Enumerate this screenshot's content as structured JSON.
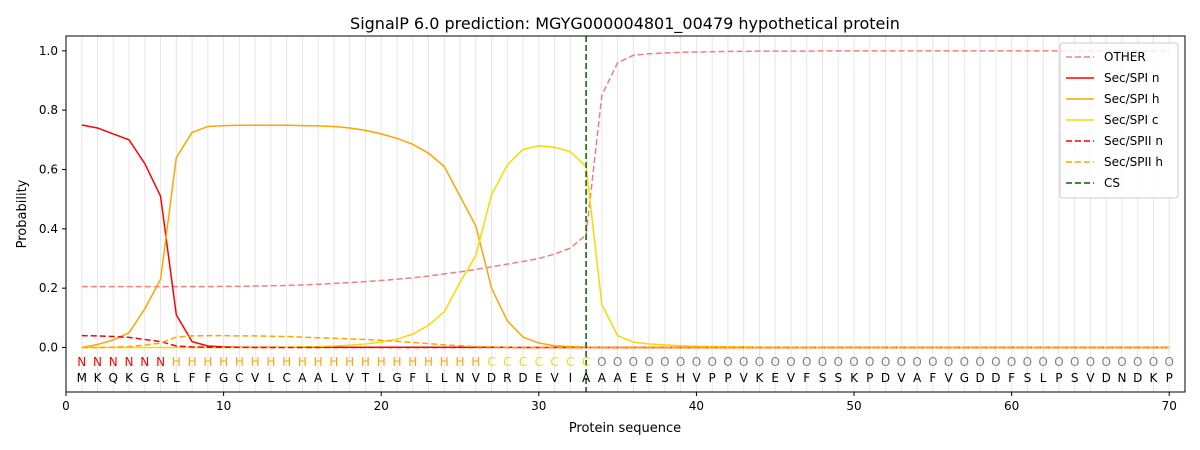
{
  "chart_data": {
    "type": "line",
    "title": "SignalP 6.0 prediction: MGYG000004801_00479 hypothetical protein",
    "xlabel": "Protein sequence",
    "ylabel": "Probability",
    "xlim": [
      0,
      71
    ],
    "ylim": [
      -0.15,
      1.05
    ],
    "x_ticks": [
      0,
      10,
      20,
      30,
      40,
      50,
      60,
      70
    ],
    "y_ticks": [
      0.0,
      0.2,
      0.4,
      0.6,
      0.8,
      1.0
    ],
    "x_tick_labels": [
      "0",
      "10",
      "20",
      "30",
      "40",
      "50",
      "60",
      "70"
    ],
    "y_tick_labels": [
      "0.0",
      "0.2",
      "0.4",
      "0.6",
      "0.8",
      "1.0"
    ],
    "grid": "vertical lines at each residue",
    "legend_position": "top-right",
    "sequence": [
      "M",
      "K",
      "Q",
      "K",
      "G",
      "R",
      "L",
      "F",
      "F",
      "G",
      "C",
      "V",
      "L",
      "C",
      "A",
      "A",
      "L",
      "V",
      "T",
      "L",
      "G",
      "F",
      "L",
      "L",
      "N",
      "V",
      "D",
      "R",
      "D",
      "E",
      "V",
      "I",
      "A",
      "A",
      "A",
      "E",
      "E",
      "S",
      "H",
      "V",
      "P",
      "P",
      "V",
      "K",
      "E",
      "V",
      "F",
      "S",
      "S",
      "K",
      "P",
      "D",
      "V",
      "A",
      "F",
      "V",
      "G",
      "D",
      "D",
      "F",
      "S",
      "L",
      "P",
      "S",
      "V",
      "D",
      "N",
      "D",
      "K",
      "P"
    ],
    "labels": [
      "N",
      "N",
      "N",
      "N",
      "N",
      "N",
      "H",
      "H",
      "H",
      "H",
      "H",
      "H",
      "H",
      "H",
      "H",
      "H",
      "H",
      "H",
      "H",
      "H",
      "H",
      "H",
      "H",
      "H",
      "H",
      "H",
      "C",
      "C",
      "C",
      "C",
      "C",
      "C",
      "C",
      "O",
      "O",
      "O",
      "O",
      "O",
      "O",
      "O",
      "O",
      "O",
      "O",
      "O",
      "O",
      "O",
      "O",
      "O",
      "O",
      "O",
      "O",
      "O",
      "O",
      "O",
      "O",
      "O",
      "O",
      "O",
      "O",
      "O",
      "O",
      "O",
      "O",
      "O",
      "O",
      "O",
      "O",
      "O",
      "O",
      "O"
    ],
    "label_colors": {
      "N": "#ff0000",
      "H": "#ffa500",
      "C": "#ffd700",
      "O": "#808080"
    },
    "cleavage_site": 33,
    "series": [
      {
        "name": "OTHER",
        "color": "#f08080",
        "dash": "dashed",
        "values": [
          0.205,
          0.205,
          0.205,
          0.205,
          0.205,
          0.205,
          0.205,
          0.205,
          0.205,
          0.206,
          0.206,
          0.207,
          0.208,
          0.209,
          0.211,
          0.213,
          0.216,
          0.219,
          0.222,
          0.226,
          0.23,
          0.235,
          0.241,
          0.248,
          0.255,
          0.263,
          0.272,
          0.281,
          0.29,
          0.3,
          0.315,
          0.335,
          0.38,
          0.85,
          0.96,
          0.985,
          0.99,
          0.993,
          0.995,
          0.996,
          0.997,
          0.998,
          0.998,
          0.999,
          0.999,
          0.999,
          0.999,
          1.0,
          1.0,
          1.0,
          1.0,
          1.0,
          1.0,
          1.0,
          1.0,
          1.0,
          1.0,
          1.0,
          1.0,
          1.0,
          1.0,
          1.0,
          1.0,
          1.0,
          1.0,
          1.0,
          1.0,
          1.0,
          1.0,
          1.0
        ]
      },
      {
        "name": "Sec/SPI n",
        "color": "#ff0000",
        "dash": "solid",
        "values": [
          0.75,
          0.74,
          0.72,
          0.7,
          0.62,
          0.51,
          0.11,
          0.02,
          0.005,
          0.002,
          0.001,
          0.001,
          0.001,
          0.001,
          0.001,
          0.001,
          0.001,
          0.001,
          0.001,
          0.001,
          0.001,
          0.001,
          0.001,
          0.001,
          0.001,
          0.001,
          0.001,
          0.001,
          0.0,
          0.0,
          0.0,
          0.0,
          0.0,
          0.0,
          0.0,
          0.0,
          0.0,
          0.0,
          0.0,
          0.0,
          0.0,
          0.0,
          0.0,
          0.0,
          0.0,
          0.0,
          0.0,
          0.0,
          0.0,
          0.0,
          0.0,
          0.0,
          0.0,
          0.0,
          0.0,
          0.0,
          0.0,
          0.0,
          0.0,
          0.0,
          0.0,
          0.0,
          0.0,
          0.0,
          0.0,
          0.0,
          0.0,
          0.0,
          0.0,
          0.0
        ]
      },
      {
        "name": "Sec/SPI h",
        "color": "#ffa500",
        "dash": "solid",
        "values": [
          0.0,
          0.01,
          0.025,
          0.05,
          0.13,
          0.23,
          0.64,
          0.725,
          0.745,
          0.748,
          0.749,
          0.749,
          0.749,
          0.749,
          0.748,
          0.747,
          0.745,
          0.74,
          0.732,
          0.72,
          0.705,
          0.685,
          0.655,
          0.61,
          0.51,
          0.41,
          0.2,
          0.09,
          0.035,
          0.015,
          0.006,
          0.003,
          0.001,
          0.0,
          0.0,
          0.0,
          0.0,
          0.0,
          0.0,
          0.0,
          0.0,
          0.0,
          0.0,
          0.0,
          0.0,
          0.0,
          0.0,
          0.0,
          0.0,
          0.0,
          0.0,
          0.0,
          0.0,
          0.0,
          0.0,
          0.0,
          0.0,
          0.0,
          0.0,
          0.0,
          0.0,
          0.0,
          0.0,
          0.0,
          0.0,
          0.0,
          0.0,
          0.0,
          0.0,
          0.0
        ]
      },
      {
        "name": "Sec/SPI c",
        "color": "#ffd700",
        "dash": "solid",
        "values": [
          0.0,
          0.0,
          0.0,
          0.0,
          0.0,
          0.0,
          0.0,
          0.0,
          0.0,
          0.0,
          0.0,
          0.0,
          0.0,
          0.001,
          0.002,
          0.003,
          0.005,
          0.008,
          0.012,
          0.018,
          0.028,
          0.045,
          0.075,
          0.12,
          0.22,
          0.31,
          0.515,
          0.615,
          0.668,
          0.68,
          0.675,
          0.66,
          0.61,
          0.145,
          0.04,
          0.018,
          0.012,
          0.009,
          0.006,
          0.004,
          0.003,
          0.002,
          0.002,
          0.001,
          0.001,
          0.001,
          0.001,
          0.0,
          0.0,
          0.0,
          0.0,
          0.0,
          0.0,
          0.0,
          0.0,
          0.0,
          0.0,
          0.0,
          0.0,
          0.0,
          0.0,
          0.0,
          0.0,
          0.0,
          0.0,
          0.0,
          0.0,
          0.0,
          0.0,
          0.0
        ]
      },
      {
        "name": "Sec/SPII n",
        "color": "#ff0000",
        "dash": "dashed",
        "values": [
          0.04,
          0.039,
          0.037,
          0.034,
          0.027,
          0.02,
          0.005,
          0.002,
          0.001,
          0.001,
          0.001,
          0.0,
          0.0,
          0.0,
          0.0,
          0.0,
          0.0,
          0.0,
          0.0,
          0.0,
          0.0,
          0.0,
          0.0,
          0.0,
          0.0,
          0.0,
          0.0,
          0.0,
          0.0,
          0.0,
          0.0,
          0.0,
          0.0,
          0.0,
          0.0,
          0.0,
          0.0,
          0.0,
          0.0,
          0.0,
          0.0,
          0.0,
          0.0,
          0.0,
          0.0,
          0.0,
          0.0,
          0.0,
          0.0,
          0.0,
          0.0,
          0.0,
          0.0,
          0.0,
          0.0,
          0.0,
          0.0,
          0.0,
          0.0,
          0.0,
          0.0,
          0.0,
          0.0,
          0.0,
          0.0,
          0.0,
          0.0,
          0.0,
          0.0,
          0.0
        ]
      },
      {
        "name": "Sec/SPII h",
        "color": "#ffa500",
        "dash": "dashed",
        "values": [
          0.0,
          0.0,
          0.001,
          0.003,
          0.008,
          0.015,
          0.035,
          0.039,
          0.04,
          0.04,
          0.039,
          0.039,
          0.038,
          0.037,
          0.035,
          0.033,
          0.031,
          0.029,
          0.027,
          0.024,
          0.021,
          0.017,
          0.013,
          0.009,
          0.006,
          0.003,
          0.002,
          0.001,
          0.0,
          0.0,
          0.0,
          0.0,
          0.0,
          0.0,
          0.0,
          0.0,
          0.0,
          0.0,
          0.0,
          0.0,
          0.0,
          0.0,
          0.0,
          0.0,
          0.0,
          0.0,
          0.0,
          0.0,
          0.0,
          0.0,
          0.0,
          0.0,
          0.0,
          0.0,
          0.0,
          0.0,
          0.0,
          0.0,
          0.0,
          0.0,
          0.0,
          0.0,
          0.0,
          0.0,
          0.0,
          0.0,
          0.0,
          0.0,
          0.0,
          0.0
        ]
      }
    ],
    "cs_legend": {
      "name": "CS",
      "color": "#006400",
      "dash": "dashed"
    }
  }
}
